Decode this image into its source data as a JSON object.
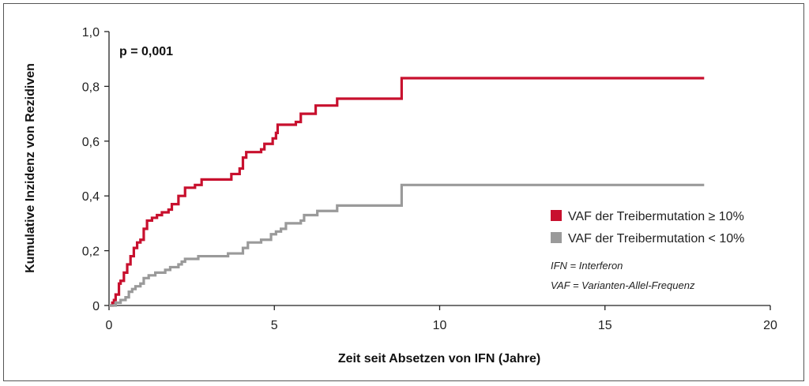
{
  "chart_data": {
    "type": "line",
    "subtype": "step (cumulative incidence)",
    "xlabel": "Zeit seit Absetzen von IFN (Jahre)",
    "ylabel": "Kumulative Inzidenz von Rezidiven",
    "xlim": [
      0,
      20
    ],
    "ylim": [
      0,
      1.0
    ],
    "x_ticks": [
      0,
      5,
      10,
      15,
      20
    ],
    "x_tick_labels": [
      "0",
      "5",
      "10",
      "15",
      "20"
    ],
    "y_ticks": [
      0,
      0.2,
      0.4,
      0.6,
      0.8,
      1.0
    ],
    "y_tick_labels": [
      "0",
      "0,2",
      "0,4",
      "0,6",
      "0,8",
      "1,0"
    ],
    "grid": false,
    "annotation": "p = 0,001",
    "legend_placement": "bottom-right",
    "notes": [
      "IFN = Interferon",
      "VAF = Varianten-Allel-Frequenz"
    ],
    "series": [
      {
        "name": "VAF der Treibermutation ≥ 10%",
        "color": "#c8102e",
        "points": [
          [
            0,
            0
          ],
          [
            0.1,
            0.01
          ],
          [
            0.15,
            0.02
          ],
          [
            0.2,
            0.04
          ],
          [
            0.3,
            0.08
          ],
          [
            0.35,
            0.09
          ],
          [
            0.45,
            0.12
          ],
          [
            0.55,
            0.15
          ],
          [
            0.65,
            0.18
          ],
          [
            0.75,
            0.21
          ],
          [
            0.85,
            0.23
          ],
          [
            0.95,
            0.24
          ],
          [
            1.05,
            0.28
          ],
          [
            1.15,
            0.31
          ],
          [
            1.3,
            0.32
          ],
          [
            1.45,
            0.33
          ],
          [
            1.6,
            0.34
          ],
          [
            1.8,
            0.35
          ],
          [
            1.9,
            0.37
          ],
          [
            2.1,
            0.4
          ],
          [
            2.3,
            0.43
          ],
          [
            2.5,
            0.43
          ],
          [
            2.6,
            0.44
          ],
          [
            2.8,
            0.46
          ],
          [
            3.6,
            0.46
          ],
          [
            3.7,
            0.48
          ],
          [
            3.95,
            0.5
          ],
          [
            4.05,
            0.54
          ],
          [
            4.15,
            0.56
          ],
          [
            4.6,
            0.57
          ],
          [
            4.7,
            0.59
          ],
          [
            4.95,
            0.61
          ],
          [
            5.05,
            0.63
          ],
          [
            5.1,
            0.66
          ],
          [
            5.65,
            0.67
          ],
          [
            5.8,
            0.7
          ],
          [
            6.25,
            0.73
          ],
          [
            6.9,
            0.755
          ],
          [
            8.85,
            0.83
          ],
          [
            18.0,
            0.83
          ]
        ]
      },
      {
        "name": "VAF der Treibermutation < 10%",
        "color": "#9a9a9a",
        "points": [
          [
            0,
            0
          ],
          [
            0.2,
            0.01
          ],
          [
            0.35,
            0.02
          ],
          [
            0.5,
            0.03
          ],
          [
            0.6,
            0.05
          ],
          [
            0.7,
            0.06
          ],
          [
            0.8,
            0.07
          ],
          [
            0.95,
            0.08
          ],
          [
            1.05,
            0.1
          ],
          [
            1.2,
            0.11
          ],
          [
            1.4,
            0.12
          ],
          [
            1.7,
            0.13
          ],
          [
            1.85,
            0.14
          ],
          [
            2.1,
            0.15
          ],
          [
            2.2,
            0.16
          ],
          [
            2.3,
            0.17
          ],
          [
            2.7,
            0.18
          ],
          [
            3.6,
            0.19
          ],
          [
            4.05,
            0.21
          ],
          [
            4.2,
            0.23
          ],
          [
            4.6,
            0.24
          ],
          [
            4.9,
            0.26
          ],
          [
            5.05,
            0.27
          ],
          [
            5.2,
            0.28
          ],
          [
            5.35,
            0.3
          ],
          [
            5.8,
            0.31
          ],
          [
            5.9,
            0.33
          ],
          [
            6.3,
            0.345
          ],
          [
            6.9,
            0.365
          ],
          [
            8.85,
            0.44
          ],
          [
            18.0,
            0.44
          ]
        ]
      }
    ]
  }
}
